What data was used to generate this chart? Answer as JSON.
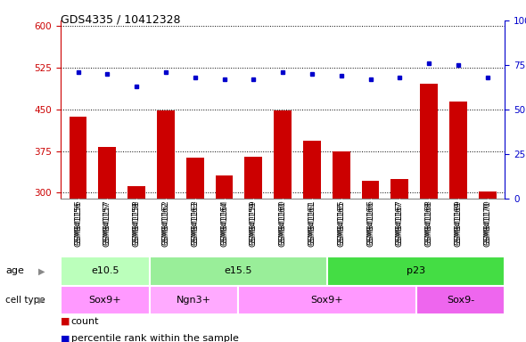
{
  "title": "GDS4335 / 10412328",
  "samples": [
    "GSM841156",
    "GSM841157",
    "GSM841158",
    "GSM841162",
    "GSM841163",
    "GSM841164",
    "GSM841159",
    "GSM841160",
    "GSM841161",
    "GSM841165",
    "GSM841166",
    "GSM841167",
    "GSM841168",
    "GSM841169",
    "GSM841170"
  ],
  "counts": [
    437,
    382,
    312,
    448,
    363,
    332,
    365,
    448,
    393,
    375,
    322,
    325,
    497,
    465,
    302
  ],
  "percentiles": [
    71,
    70,
    63,
    71,
    68,
    67,
    67,
    71,
    70,
    69,
    67,
    68,
    76,
    75,
    68
  ],
  "ylim_left": [
    290,
    610
  ],
  "ylim_right": [
    0,
    100
  ],
  "yticks_left": [
    300,
    375,
    450,
    525,
    600
  ],
  "yticks_right": [
    0,
    25,
    50,
    75,
    100
  ],
  "bar_color": "#CC0000",
  "dot_color": "#0000CC",
  "age_groups": [
    {
      "label": "e10.5",
      "start": 0,
      "end": 3,
      "color": "#BBFFBB"
    },
    {
      "label": "e15.5",
      "start": 3,
      "end": 9,
      "color": "#99EE99"
    },
    {
      "label": "p23",
      "start": 9,
      "end": 15,
      "color": "#44DD44"
    }
  ],
  "cell_groups": [
    {
      "label": "Sox9+",
      "start": 0,
      "end": 3,
      "color": "#FF99FF"
    },
    {
      "label": "Ngn3+",
      "start": 3,
      "end": 6,
      "color": "#FFAAFF"
    },
    {
      "label": "Sox9+",
      "start": 6,
      "end": 12,
      "color": "#FF99FF"
    },
    {
      "label": "Sox9-",
      "start": 12,
      "end": 15,
      "color": "#EE66EE"
    }
  ],
  "plot_bg": "#FFFFFF",
  "legend_items": [
    {
      "label": "count",
      "color": "#CC0000"
    },
    {
      "label": "percentile rank within the sample",
      "color": "#0000CC"
    }
  ]
}
